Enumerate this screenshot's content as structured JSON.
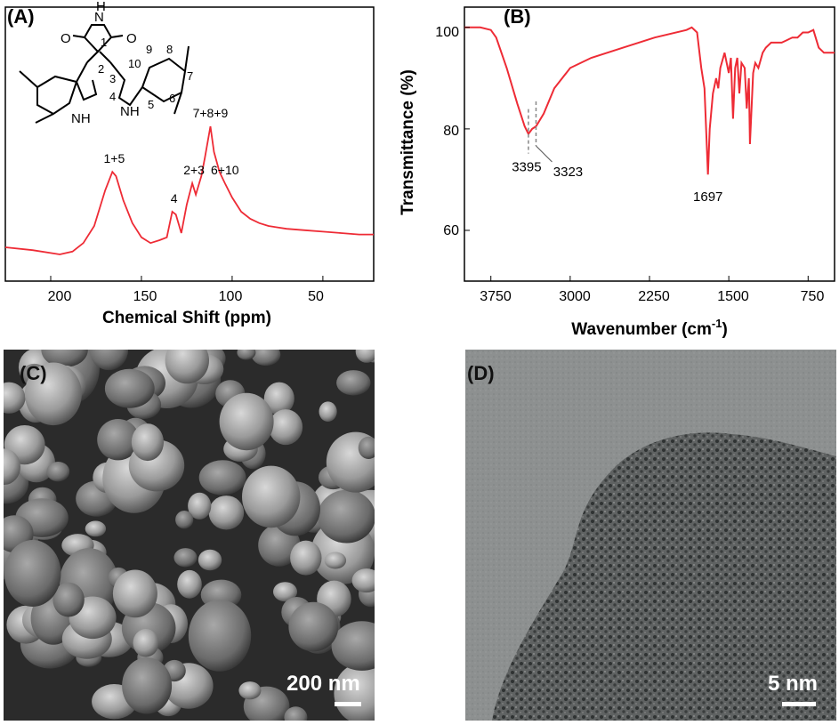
{
  "panels": {
    "a": {
      "label": "(A)",
      "xlabel": "Chemical Shift (ppm)",
      "xticks": [
        "200",
        "150",
        "100",
        "50"
      ],
      "peaks": [
        "1+5",
        "4",
        "2+3",
        "7+8+9",
        "6+10"
      ],
      "structure_labels": {
        "o1": "O",
        "o2": "O",
        "nh_top": "H",
        "n_top": "N",
        "n1": "1",
        "n2": "2",
        "n3": "3",
        "n4": "4",
        "n5": "5",
        "n6": "6",
        "n7": "7",
        "n8": "8",
        "n9": "9",
        "n10": "10",
        "nh_left": "NH",
        "nh_left_h": "H",
        "nh_right": "NH"
      }
    },
    "b": {
      "label": "(B)",
      "xlabel": "Wavenumber (cm",
      "xlabel_sup": "-1",
      "xlabel_end": ")",
      "ylabel": "Transmittance (%)",
      "xticks": [
        "3750",
        "3000",
        "2250",
        "1500",
        "750"
      ],
      "yticks": [
        "100",
        "80",
        "60"
      ],
      "annotations": [
        "3395",
        "3323",
        "1697"
      ]
    },
    "c": {
      "label": "(C)",
      "scale": "200 nm"
    },
    "d": {
      "label": "(D)",
      "scale": "5 nm"
    }
  },
  "colors": {
    "spectrum": "#ee2b35",
    "sem_bg": "#3a3a3a",
    "tem_bg": "#8c8f8f"
  },
  "chart_data": [
    {
      "type": "line",
      "title": "",
      "xlabel": "Chemical Shift (ppm)",
      "ylabel": "",
      "xlim": [
        225,
        22
      ],
      "x_reversed": true,
      "series": [
        {
          "x": [
            225,
            210,
            195,
            188,
            182,
            176,
            170,
            166,
            164,
            160,
            155,
            150,
            145,
            140,
            136,
            133,
            131,
            128,
            125,
            122,
            120,
            117,
            115,
            112,
            110,
            107,
            104,
            100,
            95,
            90,
            85,
            80,
            75,
            70,
            60,
            50,
            40,
            30,
            22
          ],
          "y": [
            0.05,
            0.03,
            0.0,
            0.02,
            0.08,
            0.2,
            0.45,
            0.58,
            0.55,
            0.38,
            0.22,
            0.12,
            0.08,
            0.1,
            0.12,
            0.3,
            0.28,
            0.15,
            0.35,
            0.5,
            0.42,
            0.55,
            0.68,
            0.9,
            0.72,
            0.58,
            0.5,
            0.4,
            0.3,
            0.25,
            0.22,
            0.2,
            0.19,
            0.18,
            0.17,
            0.16,
            0.15,
            0.14,
            0.14
          ]
        }
      ],
      "peak_labels": [
        {
          "text": "1+5",
          "x": 165
        },
        {
          "text": "4",
          "x": 132
        },
        {
          "text": "2+3",
          "x": 121
        },
        {
          "text": "7+8+9",
          "x": 112
        },
        {
          "text": "6+10",
          "x": 104
        }
      ]
    },
    {
      "type": "line",
      "title": "",
      "xlabel": "Wavenumber (cm-1)",
      "ylabel": "Transmittance (%)",
      "xlim": [
        4000,
        500
      ],
      "ylim": [
        50,
        104
      ],
      "x_reversed": true,
      "series": [
        {
          "x": [
            4000,
            3850,
            3750,
            3700,
            3600,
            3500,
            3430,
            3395,
            3360,
            3323,
            3250,
            3150,
            3000,
            2800,
            2500,
            2200,
            1900,
            1850,
            1800,
            1760,
            1730,
            1697,
            1680,
            1650,
            1620,
            1600,
            1580,
            1540,
            1500,
            1480,
            1460,
            1440,
            1420,
            1400,
            1380,
            1350,
            1330,
            1310,
            1300,
            1270,
            1250,
            1220,
            1180,
            1150,
            1100,
            1050,
            1000,
            950,
            900,
            850,
            800,
            750,
            700,
            650,
            600,
            500
          ],
          "y": [
            100,
            100,
            99.5,
            98,
            92,
            85,
            80.5,
            79,
            80,
            80.5,
            83,
            88,
            92,
            94,
            96,
            98,
            99.5,
            100,
            99,
            92,
            88,
            71,
            80,
            87,
            90,
            88,
            92,
            95,
            91,
            94,
            82,
            92,
            94,
            87,
            93,
            92,
            84,
            90,
            77,
            91,
            93,
            92,
            95,
            96,
            97,
            97,
            97,
            97.5,
            98,
            98,
            99,
            99,
            99.5,
            96,
            95,
            95
          ]
        }
      ],
      "annotations": [
        {
          "text": "3395",
          "x": 3395
        },
        {
          "text": "3323",
          "x": 3323
        },
        {
          "text": "1697",
          "x": 1697
        }
      ]
    }
  ]
}
